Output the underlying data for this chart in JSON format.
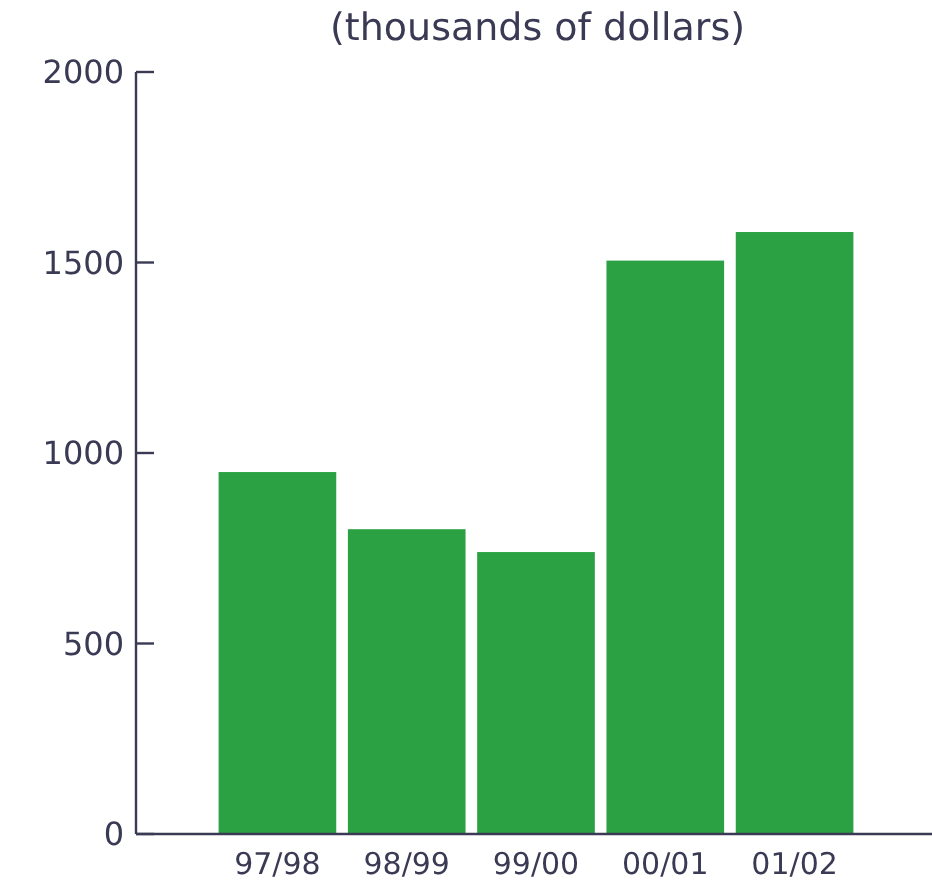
{
  "chart_data": {
    "type": "bar",
    "title": "(thousands of dollars)",
    "categories": [
      "97/98",
      "98/99",
      "99/00",
      "00/01",
      "01/02"
    ],
    "values": [
      950,
      800,
      740,
      1505,
      1580
    ],
    "color": "#2ba143",
    "ylim": [
      0,
      2000
    ],
    "yticks": [
      0,
      500,
      1000,
      1500,
      2000
    ],
    "grid": false
  }
}
